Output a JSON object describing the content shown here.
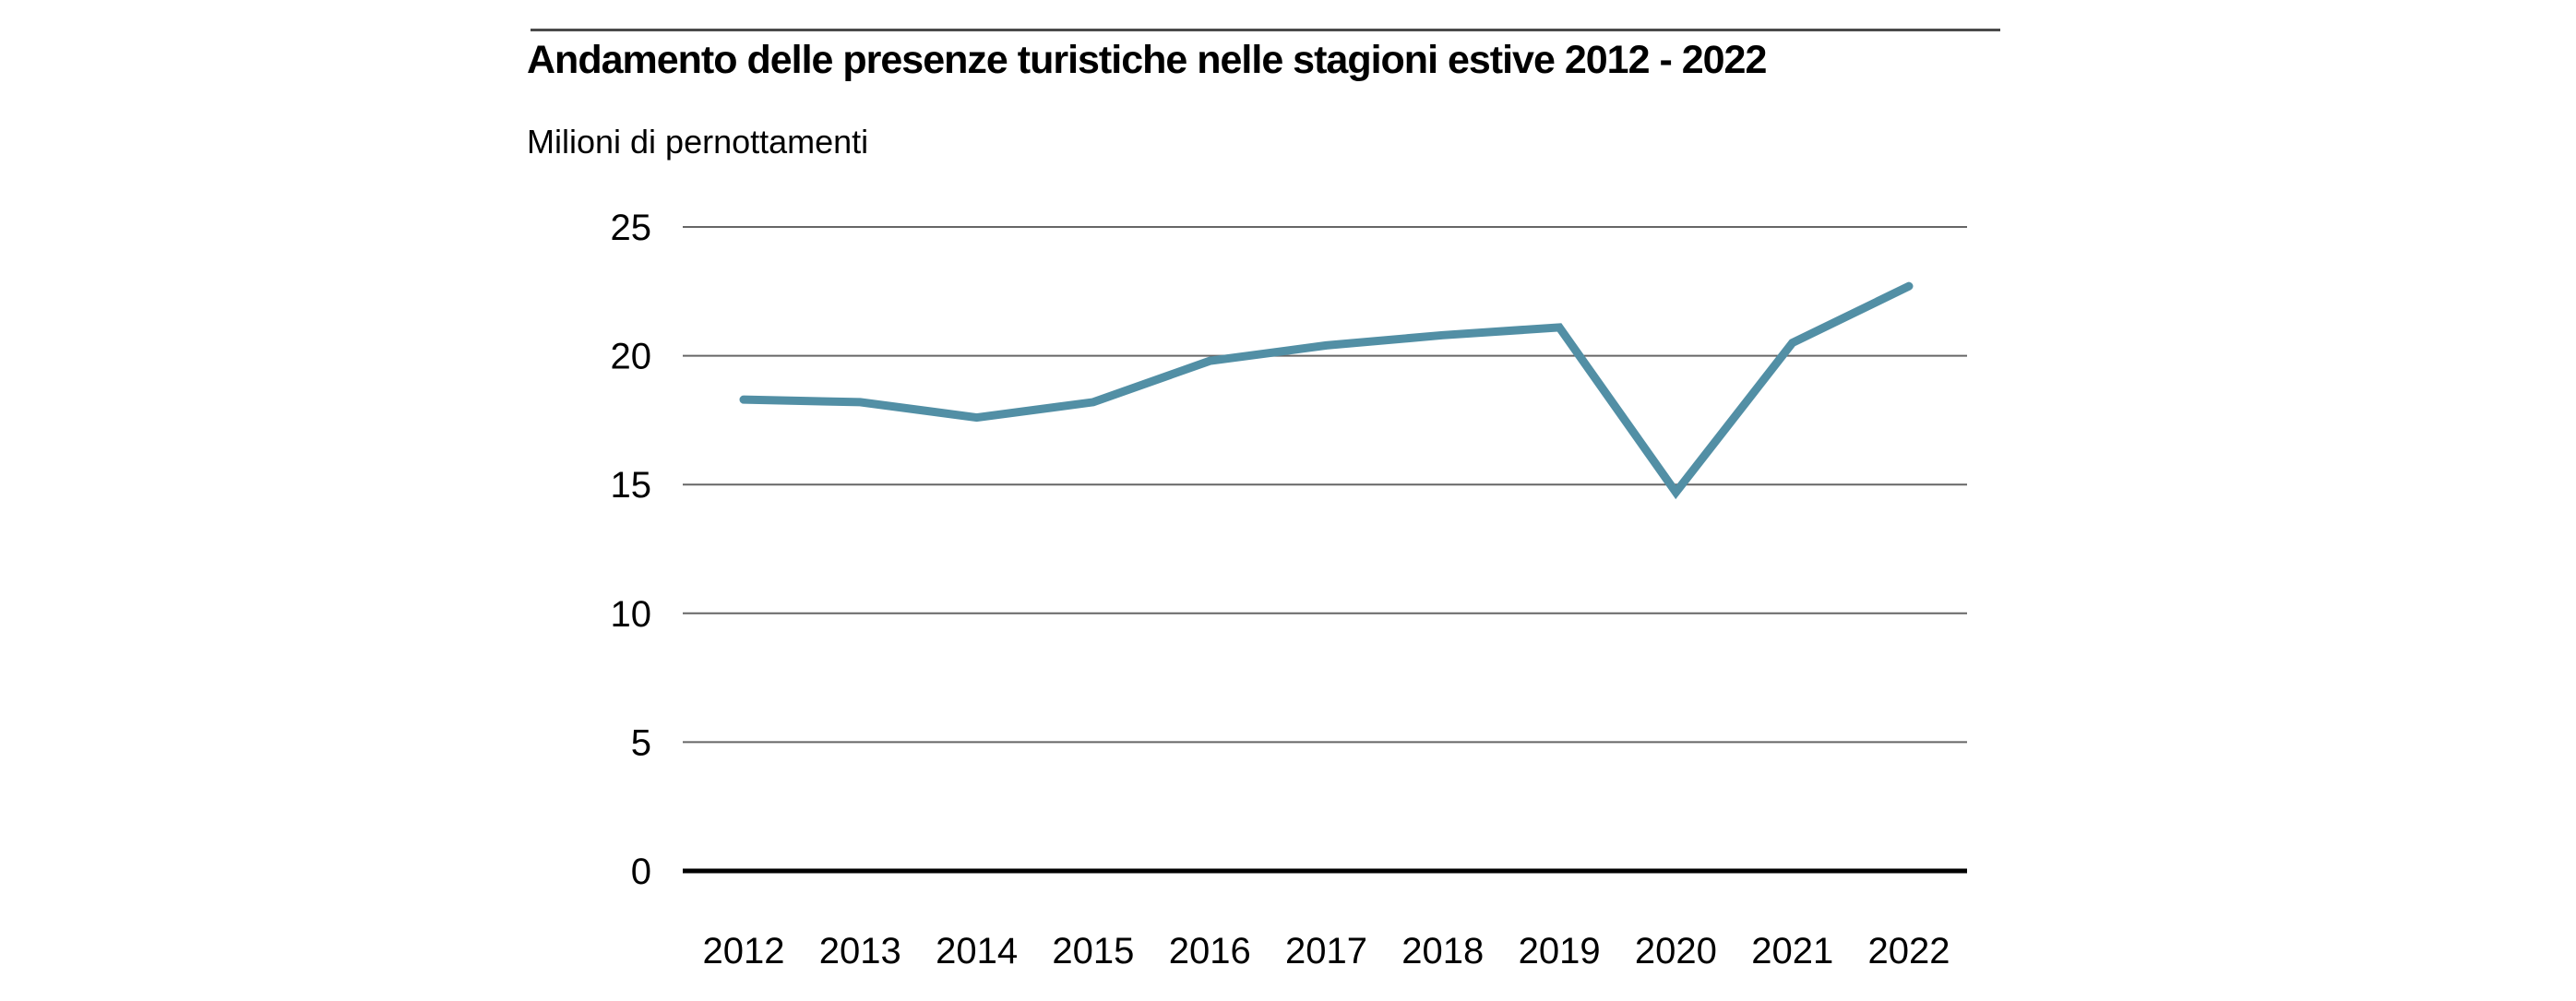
{
  "page": {
    "background_color": "#ffffff"
  },
  "header": {
    "rule_color": "#4a4a4a"
  },
  "chart_data": {
    "type": "line",
    "title": "Andamento delle presenze turistiche nelle stagioni estive 2012 - 2022",
    "ylabel": "Milioni di pernottamenti",
    "xlabel": "",
    "categories": [
      "2012",
      "2013",
      "2014",
      "2015",
      "2016",
      "2017",
      "2018",
      "2019",
      "2020",
      "2021",
      "2022"
    ],
    "values": [
      18.3,
      18.2,
      17.6,
      18.2,
      19.8,
      20.4,
      20.8,
      21.1,
      14.7,
      20.5,
      22.7
    ],
    "yticks": [
      25,
      20,
      15,
      10,
      5,
      0
    ],
    "ylim": [
      0,
      25
    ],
    "grid": "horizontal",
    "legend": "none",
    "line_color": "#528fa5",
    "axis_color": "#000000",
    "gridline_color": "#666666",
    "tick_label_color": "#000000"
  }
}
